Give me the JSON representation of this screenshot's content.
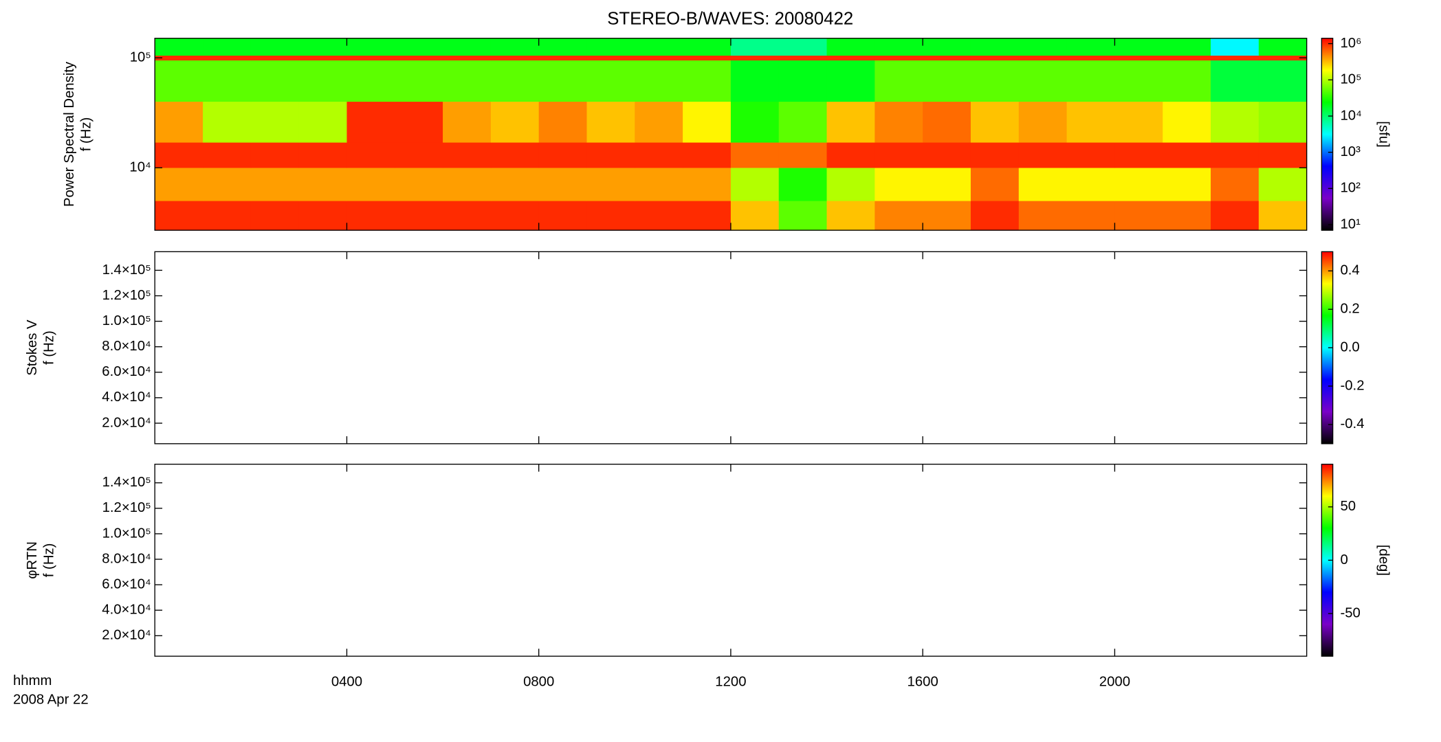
{
  "chart_data": [
    {
      "type": "heatmap",
      "title": "STEREO-B/WAVES: 20080422",
      "ylabel": [
        "Power Spectral Density",
        "f (Hz)"
      ],
      "ylog": true,
      "ylim": [
        2700,
        150600
      ],
      "yticks": [
        {
          "value": 10000,
          "label": "10⁴"
        },
        {
          "value": 100000,
          "label": "10⁵"
        }
      ],
      "xlim": [
        0,
        24
      ],
      "xticks": [
        {
          "value": 4,
          "label": "0400"
        },
        {
          "value": 8,
          "label": "0800"
        },
        {
          "value": 12,
          "label": "1200"
        },
        {
          "value": 16,
          "label": "1600"
        },
        {
          "value": 20,
          "label": "2000"
        }
      ],
      "xlabel": [
        "hhmm",
        "2008 Apr 22"
      ],
      "xbins": [
        0,
        1,
        2,
        3,
        4,
        5,
        6,
        7,
        8,
        9,
        10,
        11,
        12,
        13,
        14,
        15,
        16,
        17,
        18,
        19,
        20,
        21,
        22,
        23,
        24
      ],
      "ybins": [
        2700,
        5000,
        10000,
        17000,
        40000,
        95000,
        105000,
        150600
      ],
      "z": [
        [
          1000000,
          1000000,
          1000000,
          1000000,
          1000000,
          1000000,
          1000000,
          1000000,
          1000000,
          1000000,
          1000000,
          1000000,
          300000,
          50000,
          300000,
          500000,
          500000,
          1000000,
          600000,
          600000,
          600000,
          600000,
          1000000,
          300000
        ],
        [
          400000,
          400000,
          400000,
          400000,
          400000,
          400000,
          400000,
          400000,
          400000,
          400000,
          400000,
          400000,
          100000,
          30000,
          100000,
          200000,
          200000,
          600000,
          200000,
          200000,
          200000,
          200000,
          600000,
          100000
        ],
        [
          1000000,
          1000000,
          1000000,
          1000000,
          1000000,
          1000000,
          1000000,
          1000000,
          1000000,
          1000000,
          1000000,
          1000000,
          600000,
          600000,
          1000000,
          1000000,
          1000000,
          1000000,
          1000000,
          1000000,
          1000000,
          1000000,
          1000000,
          1000000
        ],
        [
          400000,
          100000,
          100000,
          100000,
          1000000,
          1000000,
          400000,
          300000,
          500000,
          300000,
          400000,
          200000,
          30000,
          50000,
          300000,
          500000,
          600000,
          300000,
          400000,
          300000,
          300000,
          200000,
          100000,
          80000
        ],
        [
          50000,
          50000,
          50000,
          50000,
          50000,
          50000,
          50000,
          50000,
          50000,
          50000,
          50000,
          50000,
          20000,
          20000,
          20000,
          50000,
          50000,
          50000,
          50000,
          50000,
          50000,
          50000,
          15000,
          15000
        ],
        [
          1000000,
          1000000,
          1000000,
          1000000,
          1000000,
          1000000,
          1000000,
          1000000,
          1000000,
          1000000,
          1000000,
          1000000,
          1000000,
          1000000,
          1000000,
          1000000,
          1000000,
          1000000,
          1000000,
          1000000,
          1000000,
          1000000,
          1000000,
          1000000
        ],
        [
          20000,
          20000,
          20000,
          20000,
          20000,
          20000,
          20000,
          20000,
          20000,
          20000,
          20000,
          20000,
          8000,
          8000,
          20000,
          20000,
          20000,
          20000,
          20000,
          20000,
          20000,
          20000,
          3000,
          20000
        ]
      ],
      "zlog": true,
      "zlim": [
        7,
        1410000
      ],
      "zticks": [
        {
          "value": 10,
          "label": "10¹"
        },
        {
          "value": 100,
          "label": "10²"
        },
        {
          "value": 1000,
          "label": "10³"
        },
        {
          "value": 10000,
          "label": "10⁴"
        },
        {
          "value": 100000,
          "label": "10⁵"
        },
        {
          "value": 1000000,
          "label": "10⁶"
        }
      ],
      "zlabel": "[sfu]",
      "colormap": [
        "#000000",
        "#7a00c8",
        "#0000ff",
        "#00ffff",
        "#00ff00",
        "#ffff00",
        "#ff0000"
      ]
    },
    {
      "type": "heatmap",
      "ylabel": [
        "Stokes V",
        "f (Hz)"
      ],
      "ylog": false,
      "ylim": [
        3900,
        154600
      ],
      "yticks": [
        {
          "value": 20000,
          "label": "2.0×10⁴"
        },
        {
          "value": 40000,
          "label": "4.0×10⁴"
        },
        {
          "value": 60000,
          "label": "6.0×10⁴"
        },
        {
          "value": 80000,
          "label": "8.0×10⁴"
        },
        {
          "value": 100000,
          "label": "1.0×10⁵"
        },
        {
          "value": 120000,
          "label": "1.2×10⁵"
        },
        {
          "value": 140000,
          "label": "1.4×10⁵"
        }
      ],
      "xlim": [
        0,
        24
      ],
      "zlog": false,
      "zlim": [
        -0.5,
        0.5
      ],
      "zticks": [
        -0.4,
        -0.2,
        {
          "value": 0,
          "label": "0.0"
        },
        0.2,
        0.4
      ],
      "colormap": [
        "#000000",
        "#7a00c8",
        "#0000ff",
        "#00ffff",
        "#00ff00",
        "#ffff00",
        "#ff0000"
      ]
    },
    {
      "type": "heatmap",
      "ylabel": [
        "φRTN",
        "f (Hz)"
      ],
      "ylog": false,
      "ylim": [
        3900,
        154600
      ],
      "yticks": [
        {
          "value": 20000,
          "label": "2.0×10⁴"
        },
        {
          "value": 40000,
          "label": "4.0×10⁴"
        },
        {
          "value": 60000,
          "label": "6.0×10⁴"
        },
        {
          "value": 80000,
          "label": "8.0×10⁴"
        },
        {
          "value": 100000,
          "label": "1.0×10⁵"
        },
        {
          "value": 120000,
          "label": "1.2×10⁵"
        },
        {
          "value": 140000,
          "label": "1.4×10⁵"
        }
      ],
      "xlim": [
        0,
        24
      ],
      "zlog": false,
      "zlim": [
        -90,
        90
      ],
      "zticks": [
        -50,
        0,
        50
      ],
      "zlabel": "[deg]",
      "colormap": [
        "#000000",
        "#7a00c8",
        "#0000ff",
        "#00ffff",
        "#00ff00",
        "#ffff00",
        "#ff0000"
      ]
    }
  ]
}
